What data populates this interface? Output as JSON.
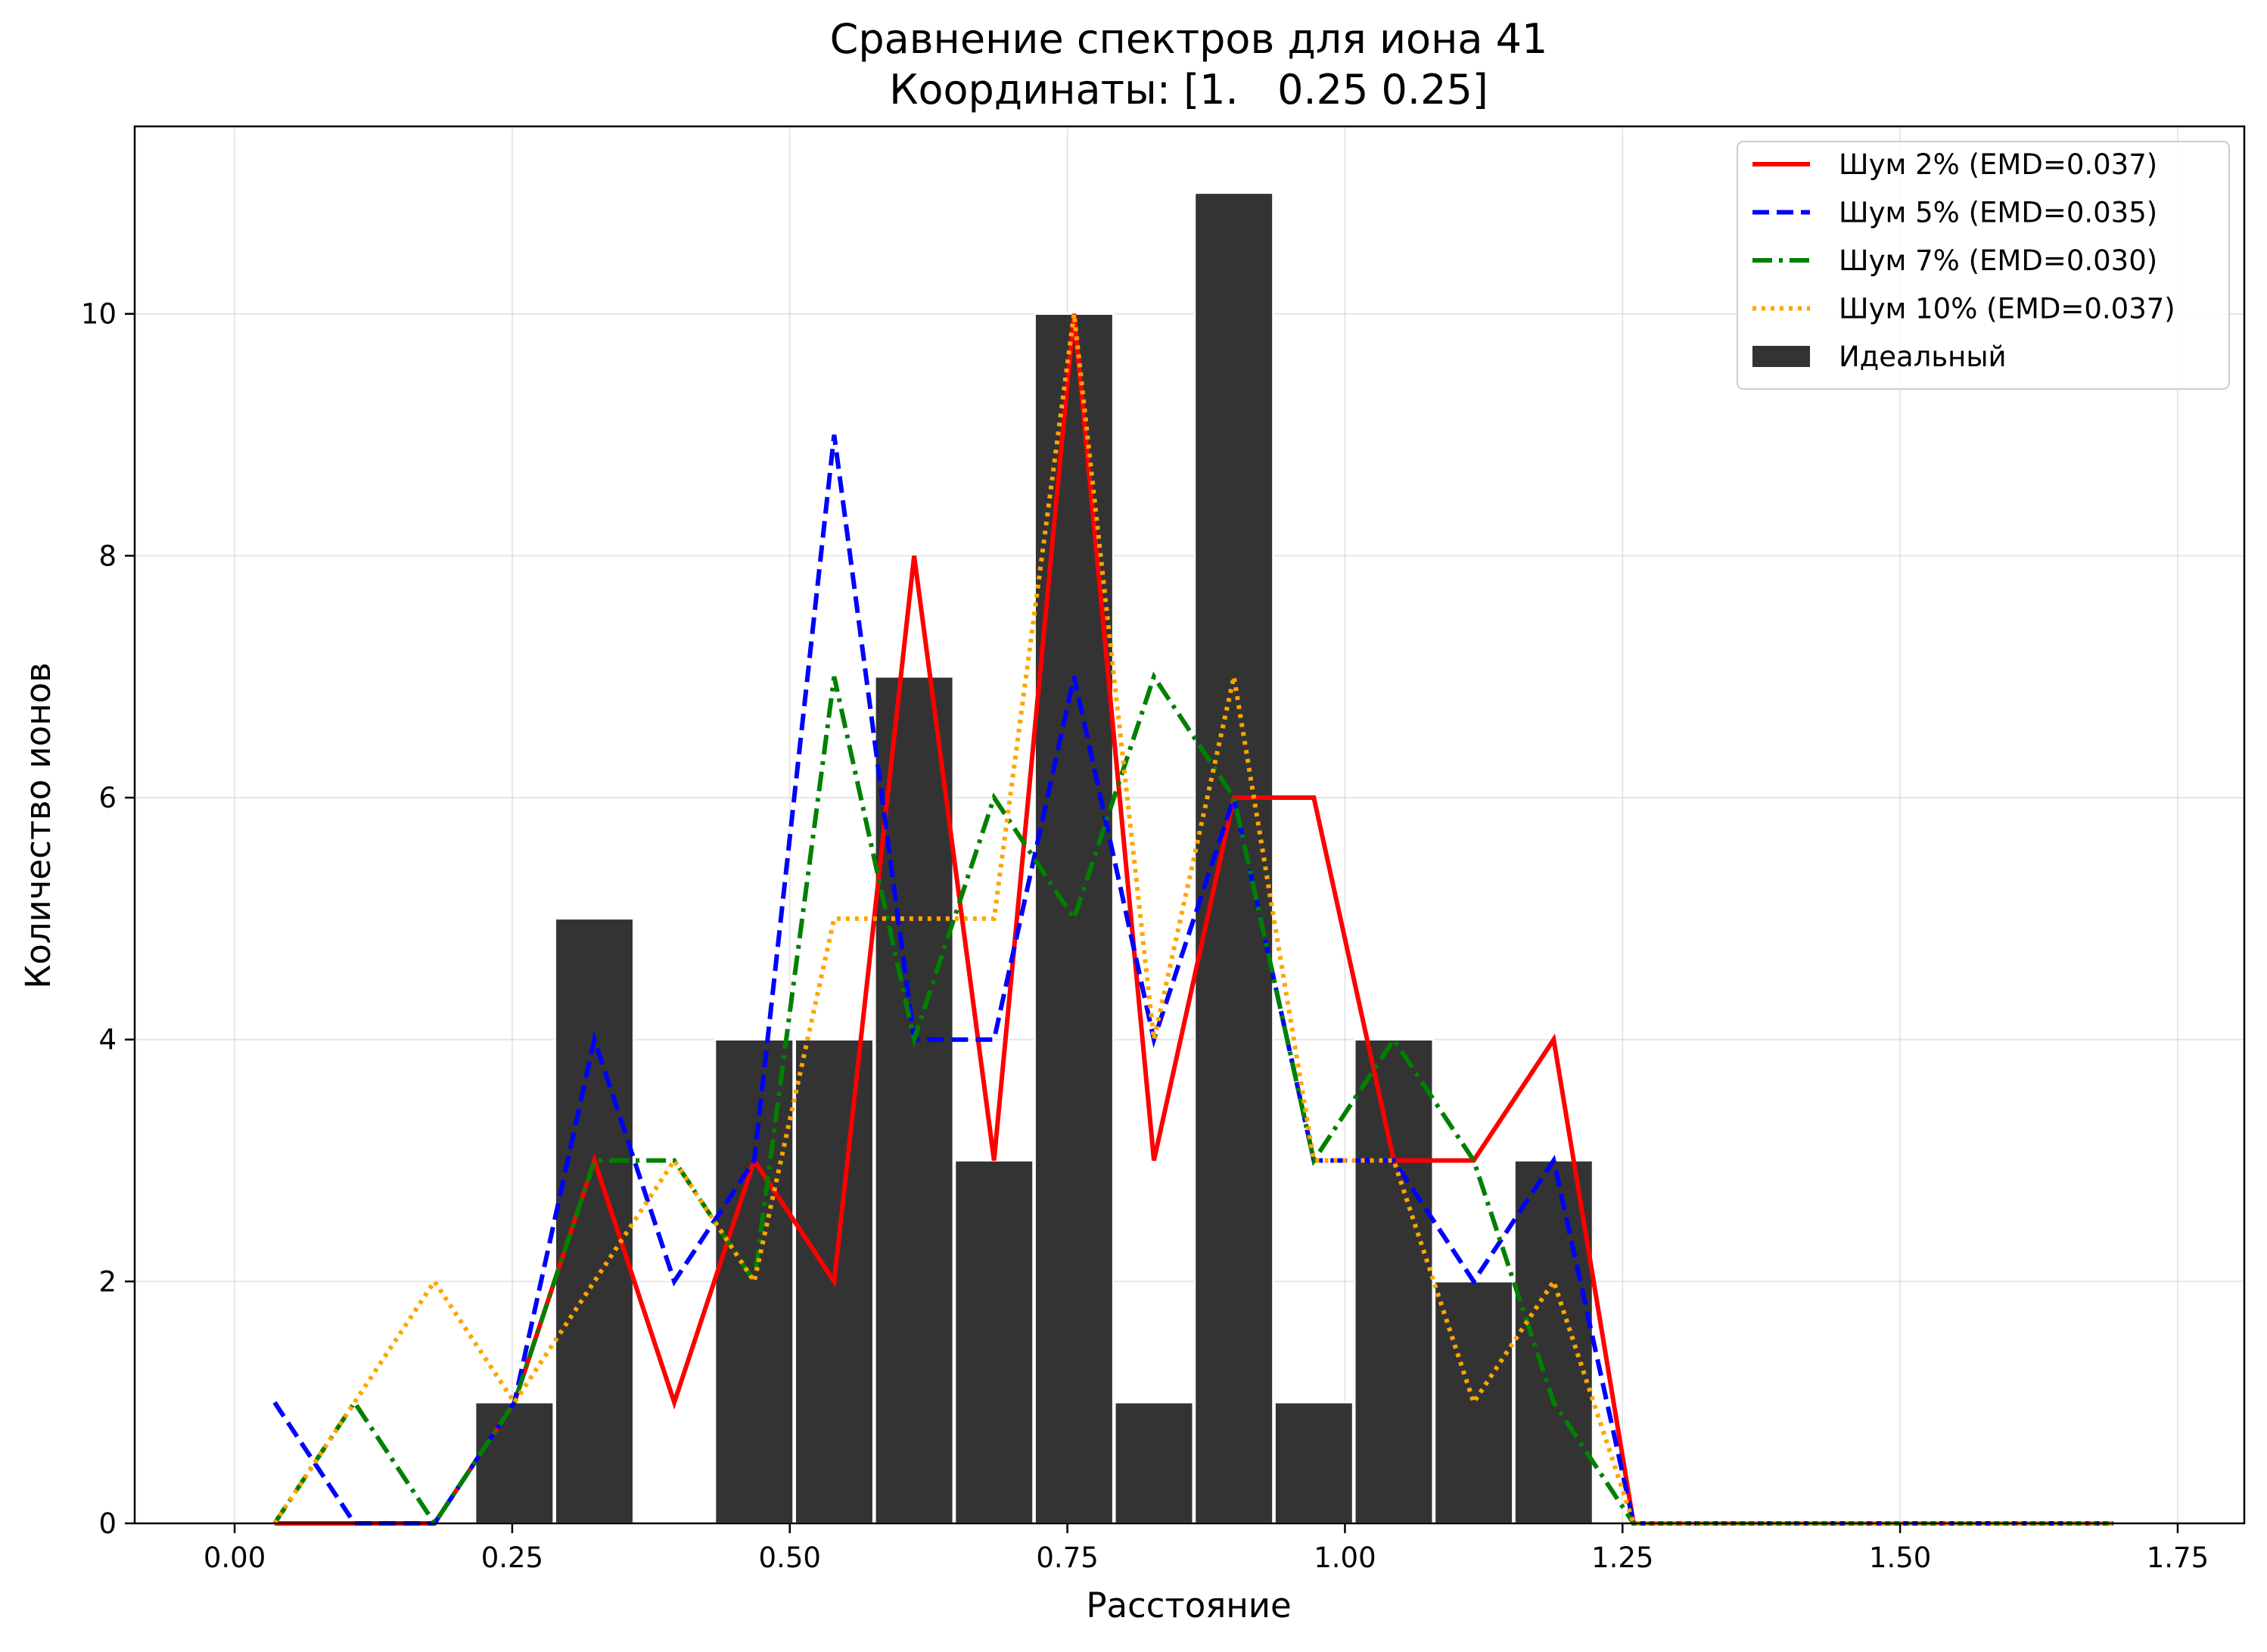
{
  "chart_data": {
    "type": "bar",
    "title": "Сравнение спектров для иона 41",
    "subtitle": "Координаты: [1.   0.25 0.25]",
    "xlabel": "Расстояние",
    "ylabel": "Количество ионов",
    "xlim": [
      -0.09,
      1.81
    ],
    "ylim": [
      0,
      11.55
    ],
    "xticks": [
      0.0,
      0.25,
      0.5,
      0.75,
      1.0,
      1.25,
      1.5,
      1.75
    ],
    "xtick_labels": [
      "0.00",
      "0.25",
      "0.50",
      "0.75",
      "1.00",
      "1.25",
      "1.50",
      "1.75"
    ],
    "yticks": [
      0,
      2,
      4,
      6,
      8,
      10
    ],
    "ytick_labels": [
      "0",
      "2",
      "4",
      "6",
      "8",
      "10"
    ],
    "grid": true,
    "legend_position": "top-right",
    "bar_series": {
      "name": "Идеальный",
      "color": "#333333",
      "x": [
        0.252,
        0.324,
        0.468,
        0.54,
        0.612,
        0.684,
        0.756,
        0.828,
        0.9,
        0.972,
        1.044,
        1.116,
        1.188
      ],
      "values": [
        1,
        5,
        4,
        4,
        7,
        3,
        10,
        1,
        11,
        1,
        4,
        2,
        3
      ],
      "width": 0.0705
    },
    "x": [
      0.036,
      0.108,
      0.18,
      0.252,
      0.324,
      0.396,
      0.468,
      0.54,
      0.612,
      0.684,
      0.756,
      0.828,
      0.9,
      0.972,
      1.044,
      1.116,
      1.188,
      1.26,
      1.332,
      1.404,
      1.476,
      1.548,
      1.62,
      1.692
    ],
    "series": [
      {
        "name": "Шум 2% (EMD=0.037)",
        "color": "#ff0000",
        "style": "solid",
        "values": [
          0,
          0,
          0,
          1,
          3,
          1,
          3,
          2,
          8,
          3,
          10,
          3,
          6,
          6,
          3,
          3,
          4,
          0,
          0,
          0,
          0,
          0,
          0,
          0
        ]
      },
      {
        "name": "Шум 5% (EMD=0.035)",
        "color": "#0000ff",
        "style": "dashed",
        "values": [
          1,
          0,
          0,
          1,
          4,
          2,
          3,
          9,
          4,
          4,
          7,
          4,
          6,
          3,
          3,
          2,
          3,
          0,
          0,
          0,
          0,
          0,
          0,
          0
        ]
      },
      {
        "name": "Шум 7% (EMD=0.030)",
        "color": "#008000",
        "style": "dashdot",
        "values": [
          0,
          1,
          0,
          1,
          3,
          3,
          2,
          7,
          4,
          6,
          5,
          7,
          6,
          3,
          4,
          3,
          1,
          0,
          0,
          0,
          0,
          0,
          0,
          0
        ]
      },
      {
        "name": "Шум 10% (EMD=0.037)",
        "color": "#ffa500",
        "style": "dotted",
        "values": [
          0,
          1,
          2,
          1,
          2,
          3,
          2,
          5,
          5,
          5,
          10,
          4,
          7,
          3,
          3,
          1,
          2,
          0,
          0,
          0,
          0,
          0,
          0,
          0
        ]
      }
    ]
  }
}
